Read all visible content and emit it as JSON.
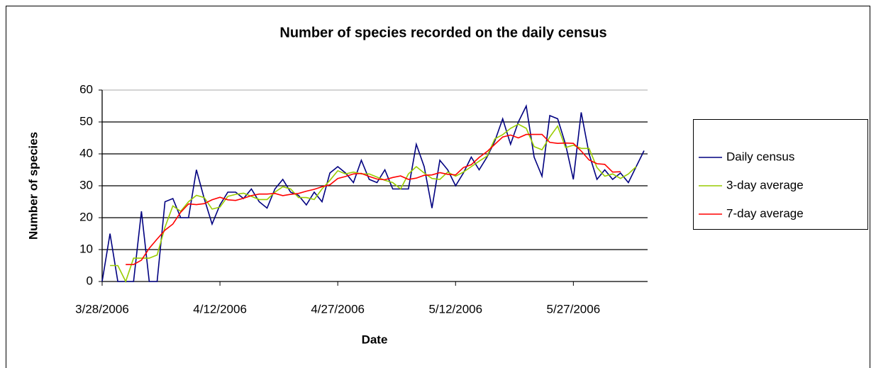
{
  "chart_data": {
    "type": "line",
    "title": "Number of species recorded on the daily census",
    "x_label": "Date",
    "y_label": "Number of species",
    "x": [
      "2006-03-28",
      "2006-03-29",
      "2006-03-30",
      "2006-03-31",
      "2006-04-01",
      "2006-04-02",
      "2006-04-03",
      "2006-04-04",
      "2006-04-05",
      "2006-04-06",
      "2006-04-07",
      "2006-04-08",
      "2006-04-09",
      "2006-04-10",
      "2006-04-11",
      "2006-04-12",
      "2006-04-13",
      "2006-04-14",
      "2006-04-15",
      "2006-04-16",
      "2006-04-17",
      "2006-04-18",
      "2006-04-19",
      "2006-04-20",
      "2006-04-21",
      "2006-04-22",
      "2006-04-23",
      "2006-04-24",
      "2006-04-25",
      "2006-04-26",
      "2006-04-27",
      "2006-04-28",
      "2006-04-29",
      "2006-04-30",
      "2006-05-01",
      "2006-05-02",
      "2006-05-03",
      "2006-05-04",
      "2006-05-05",
      "2006-05-06",
      "2006-05-07",
      "2006-05-08",
      "2006-05-09",
      "2006-05-10",
      "2006-05-11",
      "2006-05-12",
      "2006-05-13",
      "2006-05-14",
      "2006-05-15",
      "2006-05-16",
      "2006-05-17",
      "2006-05-18",
      "2006-05-19",
      "2006-05-20",
      "2006-05-21",
      "2006-05-22",
      "2006-05-23",
      "2006-05-24",
      "2006-05-25",
      "2006-05-26",
      "2006-05-27",
      "2006-05-28",
      "2006-05-29",
      "2006-05-30",
      "2006-05-31",
      "2006-06-01",
      "2006-06-02",
      "2006-06-03",
      "2006-06-04",
      "2006-06-05"
    ],
    "series": [
      {
        "name": "Daily census",
        "color": "#000080",
        "values": [
          0,
          15,
          0,
          0,
          0,
          22,
          0,
          0,
          25,
          26,
          20,
          20,
          35,
          26,
          18,
          24,
          28,
          28,
          26,
          29,
          25,
          23,
          29,
          32,
          28,
          27,
          24,
          28,
          25,
          34,
          36,
          34,
          31,
          38,
          32,
          31,
          35,
          29,
          29,
          29,
          43,
          36,
          23,
          38,
          35,
          30,
          34,
          39,
          35,
          39,
          44,
          51,
          43,
          50,
          55,
          39,
          33,
          52,
          51,
          43,
          32,
          53,
          40,
          32,
          35,
          32,
          34,
          31,
          36,
          41
        ]
      },
      {
        "name": "3-day average",
        "color": "#99cc00",
        "values": [
          null,
          5,
          5,
          0,
          7.3,
          7.3,
          7.3,
          8.3,
          17,
          23.7,
          22,
          25,
          27,
          26.3,
          22.7,
          23.3,
          26.7,
          27.3,
          27.7,
          26.7,
          25.7,
          25.7,
          28,
          29.7,
          29,
          26.3,
          26.3,
          25.7,
          29,
          31.7,
          34.7,
          33.7,
          34.3,
          33.7,
          33.7,
          32.7,
          31.7,
          31,
          29,
          33.7,
          36,
          34,
          32.3,
          32,
          34.3,
          33,
          34.3,
          36,
          37.7,
          39.3,
          44.7,
          46,
          48,
          49.3,
          48,
          42.3,
          41.3,
          45.3,
          48.7,
          42,
          42.7,
          41.7,
          41.7,
          35.7,
          33,
          33.7,
          32.3,
          33.7,
          36,
          null
        ]
      },
      {
        "name": "7-day average",
        "color": "#ff0000",
        "values": [
          null,
          null,
          null,
          5.3,
          5.3,
          6.7,
          10.4,
          13.3,
          16.1,
          18,
          21.7,
          24.3,
          24.1,
          24.4,
          25.6,
          26.4,
          25.6,
          25.4,
          26.1,
          26.9,
          27.4,
          27.4,
          27.6,
          26.9,
          27.3,
          27.6,
          28.3,
          28.9,
          29.7,
          30.3,
          32.3,
          32.9,
          33.7,
          33.9,
          32.9,
          32.1,
          31.9,
          32.6,
          33.1,
          32,
          32.4,
          33.3,
          33.4,
          34.1,
          33.6,
          33.4,
          35.7,
          36.6,
          38.9,
          40.7,
          43,
          45.3,
          45.9,
          45,
          46.1,
          46.1,
          46.1,
          43.6,
          43.3,
          43.4,
          43.3,
          40.9,
          38.1,
          36.9,
          36.7,
          34.3,
          34.4,
          null,
          null,
          null
        ]
      }
    ],
    "xlim": [
      "2006-03-28",
      "2006-06-05"
    ],
    "xticks": [
      {
        "value": "2006-03-28",
        "label": "3/28/2006"
      },
      {
        "value": "2006-04-12",
        "label": "4/12/2006"
      },
      {
        "value": "2006-04-27",
        "label": "4/27/2006"
      },
      {
        "value": "2006-05-12",
        "label": "5/12/2006"
      },
      {
        "value": "2006-05-27",
        "label": "5/27/2006"
      }
    ],
    "ylim": [
      0,
      60
    ],
    "yticks": [
      0,
      10,
      20,
      30,
      40,
      50,
      60
    ],
    "grid": true,
    "legend": "right"
  }
}
